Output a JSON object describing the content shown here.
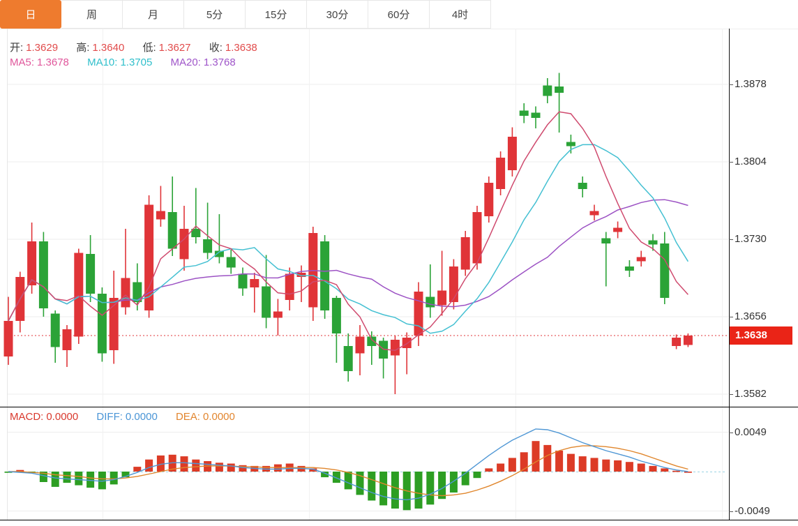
{
  "tabs": [
    {
      "label": "日",
      "active": true
    },
    {
      "label": "周",
      "active": false
    },
    {
      "label": "月",
      "active": false
    },
    {
      "label": "5分",
      "active": false
    },
    {
      "label": "15分",
      "active": false
    },
    {
      "label": "30分",
      "active": false
    },
    {
      "label": "60分",
      "active": false
    },
    {
      "label": "4时",
      "active": false
    }
  ],
  "kline_legend": {
    "open_label": "开:",
    "open_value": "1.3629",
    "high_label": "高:",
    "high_value": "1.3640",
    "low_label": "低:",
    "low_value": "1.3627",
    "close_label": "收:",
    "close_value": "1.3638",
    "ma": [
      {
        "label": "MA5:",
        "value": "1.3678"
      },
      {
        "label": "MA10:",
        "value": "1.3705"
      },
      {
        "label": "MA20:",
        "value": "1.3768"
      }
    ]
  },
  "macd_legend": [
    {
      "label": "MACD:",
      "value": "0.0000"
    },
    {
      "label": "DIFF:",
      "value": "0.0000"
    },
    {
      "label": "DEA:",
      "value": "0.0000"
    }
  ],
  "axes": {
    "main_labels": [
      "1.3878",
      "1.3804",
      "1.3730",
      "1.3656",
      "1.3582"
    ],
    "main_values": [
      1.3878,
      1.3804,
      1.373,
      1.3656,
      1.3582
    ],
    "macd_labels": [
      "0.0049",
      "-0.0049"
    ],
    "macd_values": [
      0.0049,
      -0.0049
    ],
    "price_tag": "1.3638"
  },
  "colors": {
    "up": "#e03438",
    "down": "#2ba337",
    "bar_up": "#dc3b26",
    "bar_down": "#2d9e23",
    "ma5": "#cf4a6e",
    "ma10": "#44c0d2",
    "ma20": "#9c52c4",
    "diff": "#4f97d5",
    "dea": "#e0862c",
    "dotted": "#e03438",
    "tag_bg": "#ea2417",
    "zero_dash": "#9bd4e4",
    "tab_active": "#ee7b2e",
    "value_red": "#e14b4b",
    "ma5_text": "#e0569b",
    "ma10_text": "#2fbfcb",
    "ma20_text": "#9f55c9",
    "macd_text": "#d93a2e",
    "diff_text": "#4a95d6",
    "dea_text": "#e2862f"
  },
  "chart_data": [
    {
      "type": "candlestick",
      "title": "daily K-line with MA5/MA10/MA20",
      "ylim": [
        1.3582,
        1.3878
      ],
      "grid": true,
      "last_price": 1.3638,
      "ma_periods": [
        5,
        10,
        20
      ],
      "ohlc_last": {
        "open": 1.3629,
        "high": 1.364,
        "low": 1.3627,
        "close": 1.3638
      },
      "candles_format": [
        "open",
        "close",
        "high",
        "low"
      ],
      "candles": [
        [
          1.3618,
          1.3652,
          1.3675,
          1.361
        ],
        [
          1.3652,
          1.3694,
          1.3699,
          1.3641
        ],
        [
          1.3686,
          1.3728,
          1.3746,
          1.3678
        ],
        [
          1.3728,
          1.3664,
          1.3737,
          1.3656
        ],
        [
          1.3659,
          1.3627,
          1.3662,
          1.3612
        ],
        [
          1.3624,
          1.3644,
          1.3648,
          1.3608
        ],
        [
          1.3637,
          1.3717,
          1.3721,
          1.363
        ],
        [
          1.3716,
          1.3678,
          1.3734,
          1.367
        ],
        [
          1.3678,
          1.3621,
          1.3684,
          1.3613
        ],
        [
          1.3624,
          1.3674,
          1.37,
          1.3611
        ],
        [
          1.3665,
          1.3693,
          1.374,
          1.3658
        ],
        [
          1.3689,
          1.367,
          1.3707,
          1.3662
        ],
        [
          1.3662,
          1.3763,
          1.3772,
          1.3655
        ],
        [
          1.3749,
          1.3757,
          1.3781,
          1.3742
        ],
        [
          1.3756,
          1.3721,
          1.379,
          1.3714
        ],
        [
          1.3711,
          1.374,
          1.3762,
          1.37
        ],
        [
          1.374,
          1.3732,
          1.3779,
          1.3726
        ],
        [
          1.373,
          1.3717,
          1.3765,
          1.3711
        ],
        [
          1.3719,
          1.3713,
          1.3754,
          1.3707
        ],
        [
          1.3713,
          1.3703,
          1.372,
          1.3697
        ],
        [
          1.3697,
          1.3683,
          1.3703,
          1.3676
        ],
        [
          1.3684,
          1.3692,
          1.3698,
          1.366
        ],
        [
          1.3685,
          1.3655,
          1.3715,
          1.3645
        ],
        [
          1.3655,
          1.3661,
          1.3673,
          1.3638
        ],
        [
          1.3672,
          1.3697,
          1.3703,
          1.3662
        ],
        [
          1.3694,
          1.3698,
          1.3705,
          1.367
        ],
        [
          1.3665,
          1.3736,
          1.3742,
          1.3652
        ],
        [
          1.3728,
          1.3662,
          1.3734,
          1.3654
        ],
        [
          1.3674,
          1.364,
          1.3676,
          1.3612
        ],
        [
          1.3628,
          1.3604,
          1.364,
          1.3594
        ],
        [
          1.3621,
          1.3637,
          1.3648,
          1.36
        ],
        [
          1.3637,
          1.3628,
          1.3642,
          1.361
        ],
        [
          1.3633,
          1.3616,
          1.3636,
          1.3597
        ],
        [
          1.3619,
          1.3634,
          1.3638,
          1.3582
        ],
        [
          1.3626,
          1.3636,
          1.3641,
          1.3601
        ],
        [
          1.3638,
          1.368,
          1.3689,
          1.3628
        ],
        [
          1.3675,
          1.3665,
          1.3706,
          1.3655
        ],
        [
          1.3667,
          1.3681,
          1.3719,
          1.3657
        ],
        [
          1.367,
          1.3704,
          1.3711,
          1.3663
        ],
        [
          1.3701,
          1.3732,
          1.3738,
          1.3695
        ],
        [
          1.3707,
          1.3756,
          1.3762,
          1.3701
        ],
        [
          1.3752,
          1.3784,
          1.379,
          1.3746
        ],
        [
          1.3778,
          1.3808,
          1.3814,
          1.3772
        ],
        [
          1.3796,
          1.3828,
          1.3837,
          1.379
        ],
        [
          1.3853,
          1.3848,
          1.386,
          1.3841
        ],
        [
          1.3851,
          1.3846,
          1.3857,
          1.3836
        ],
        [
          1.3877,
          1.3867,
          1.3884,
          1.386
        ],
        [
          1.3876,
          1.387,
          1.3889,
          1.3832
        ],
        [
          1.3823,
          1.3819,
          1.383,
          1.3812
        ],
        [
          1.3784,
          1.3778,
          1.379,
          1.377
        ],
        [
          1.3753,
          1.3757,
          1.3763,
          1.3748
        ],
        [
          1.3731,
          1.3726,
          1.3737,
          1.3685
        ],
        [
          1.3737,
          1.3741,
          1.3747,
          1.3731
        ],
        [
          1.3704,
          1.37,
          1.371,
          1.3694
        ],
        [
          1.3709,
          1.3713,
          1.3719,
          1.3704
        ],
        [
          1.3729,
          1.3725,
          1.3735,
          1.3719
        ],
        [
          1.3726,
          1.3674,
          1.3737,
          1.3668
        ],
        [
          1.3628,
          1.3636,
          1.3639,
          1.3625
        ],
        [
          1.3629,
          1.3638,
          1.364,
          1.3627
        ]
      ]
    },
    {
      "type": "bar",
      "title": "MACD",
      "ylim": [
        -0.0049,
        0.0049
      ],
      "hist": [
        -0.0001,
        0.0002,
        -0.0001,
        -0.0013,
        -0.0019,
        -0.0014,
        -0.0017,
        -0.002,
        -0.0022,
        -0.0016,
        -0.0007,
        0.0006,
        0.0015,
        0.002,
        0.0021,
        0.0019,
        0.0015,
        0.0013,
        0.0011,
        0.001,
        0.0008,
        0.0007,
        0.0007,
        0.0009,
        0.001,
        0.0007,
        0.0004,
        -0.0007,
        -0.0014,
        -0.0022,
        -0.0029,
        -0.0036,
        -0.0042,
        -0.0046,
        -0.0048,
        -0.0046,
        -0.0041,
        -0.0034,
        -0.0026,
        -0.0017,
        -0.0008,
        0.0004,
        0.001,
        0.0017,
        0.0024,
        0.0038,
        0.0033,
        0.0026,
        0.0022,
        0.0019,
        0.0017,
        0.0015,
        0.0014,
        0.0012,
        0.001,
        0.0007,
        0.0004,
        0.0001,
        0.0
      ],
      "diff": [
        0.0,
        -0.0001,
        -0.0002,
        -0.0005,
        -0.0008,
        -0.0009,
        -0.001,
        -0.0011,
        -0.0012,
        -0.001,
        -0.0006,
        -0.0001,
        0.0005,
        0.0009,
        0.0011,
        0.0011,
        0.001,
        0.0009,
        0.0008,
        0.0007,
        0.0005,
        0.0004,
        0.0003,
        0.0003,
        0.0004,
        0.0004,
        0.0003,
        -0.0002,
        -0.0008,
        -0.0014,
        -0.002,
        -0.0026,
        -0.0031,
        -0.0034,
        -0.0035,
        -0.0033,
        -0.0028,
        -0.0021,
        -0.0012,
        -0.0002,
        0.0009,
        0.002,
        0.003,
        0.0039,
        0.0046,
        0.0053,
        0.0052,
        0.0048,
        0.0042,
        0.0036,
        0.0031,
        0.0026,
        0.0022,
        0.0018,
        0.0013,
        0.0009,
        0.0005,
        0.0002,
        0.0
      ],
      "dea": [
        0.0,
        0.0,
        -0.0001,
        -0.0002,
        -0.0004,
        -0.0005,
        -0.0006,
        -0.0008,
        -0.0009,
        -0.0009,
        -0.0008,
        -0.0006,
        -0.0003,
        0.0,
        0.0003,
        0.0005,
        0.0006,
        0.0007,
        0.0007,
        0.0007,
        0.0006,
        0.0006,
        0.0005,
        0.0005,
        0.0005,
        0.0005,
        0.0005,
        0.0004,
        0.0002,
        -0.0001,
        -0.0005,
        -0.001,
        -0.0015,
        -0.002,
        -0.0024,
        -0.0027,
        -0.0029,
        -0.003,
        -0.0029,
        -0.0027,
        -0.0023,
        -0.0018,
        -0.0012,
        -0.0005,
        0.0003,
        0.0012,
        0.002,
        0.0026,
        0.003,
        0.0032,
        0.0032,
        0.0031,
        0.0029,
        0.0026,
        0.0022,
        0.0017,
        0.0012,
        0.0007,
        0.0003
      ]
    }
  ]
}
